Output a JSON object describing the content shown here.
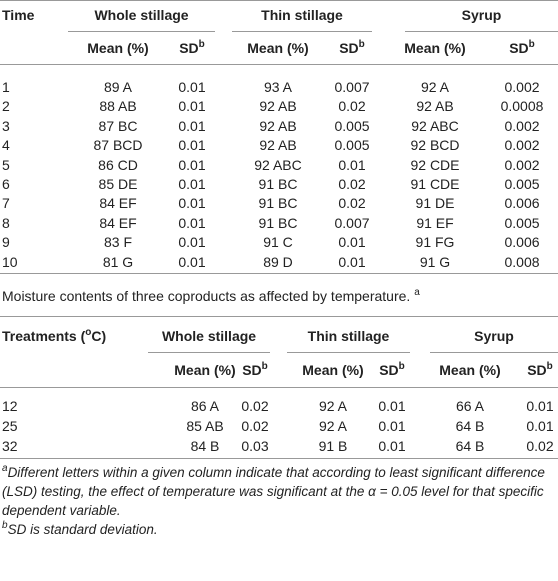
{
  "table1": {
    "first_header": "Time",
    "groups": [
      {
        "name": "Whole stillage",
        "mean_header": "Mean (%)",
        "sd_header": "SD",
        "sd_sup": "b"
      },
      {
        "name": "Thin stillage",
        "mean_header": "Mean (%)",
        "sd_header": "SD",
        "sd_sup": "b"
      },
      {
        "name": "Syrup",
        "mean_header": "Mean (%)",
        "sd_header": "SD",
        "sd_sup": "b"
      }
    ],
    "rows": [
      [
        "1",
        "89 A",
        "0.01",
        "93 A",
        "0.007",
        "92 A",
        "0.002"
      ],
      [
        "2",
        "88 AB",
        "0.01",
        "92 AB",
        "0.02",
        "92 AB",
        "0.0008"
      ],
      [
        "3",
        "87 BC",
        "0.01",
        "92 AB",
        "0.005",
        "92 ABC",
        "0.002"
      ],
      [
        "4",
        "87 BCD",
        "0.01",
        "92 AB",
        "0.005",
        "92 BCD",
        "0.002"
      ],
      [
        "5",
        "86 CD",
        "0.01",
        "92 ABC",
        "0.01",
        "92 CDE",
        "0.002"
      ],
      [
        "6",
        "85 DE",
        "0.01",
        "91 BC",
        "0.02",
        "91 CDE",
        "0.005"
      ],
      [
        "7",
        "84 EF",
        "0.01",
        "91 BC",
        "0.02",
        "91 DE",
        "0.006"
      ],
      [
        "8",
        "84 EF",
        "0.01",
        "91 BC",
        "0.007",
        "91 EF",
        "0.005"
      ],
      [
        "9",
        "83 F",
        "0.01",
        "91 C",
        "0.01",
        "91 FG",
        "0.006"
      ],
      [
        "10",
        "81 G",
        "0.01",
        "89 D",
        "0.01",
        "91 G",
        "0.008"
      ]
    ]
  },
  "caption": {
    "text": "Moisture contents of three coproducts as affected by temperature.",
    "sup": "a"
  },
  "table2": {
    "first_header": "Treatments (",
    "first_header_sup": "o",
    "first_header_tail": "C)",
    "groups": [
      {
        "name": "Whole stillage",
        "mean_header": "Mean (%)",
        "sd_header": "SD",
        "sd_sup": "b"
      },
      {
        "name": "Thin stillage",
        "mean_header": "Mean (%)",
        "sd_header": "SD",
        "sd_sup": "b"
      },
      {
        "name": "Syrup",
        "mean_header": "Mean (%)",
        "sd_header": "SD",
        "sd_sup": "b"
      }
    ],
    "rows": [
      [
        "12",
        "86 A",
        "0.02",
        "92 A",
        "0.01",
        "66 A",
        "0.01"
      ],
      [
        "25",
        "85 AB",
        "0.02",
        "92 A",
        "0.01",
        "64 B",
        "0.01"
      ],
      [
        "32",
        "84 B",
        "0.03",
        "91 B",
        "0.01",
        "64 B",
        "0.02"
      ]
    ]
  },
  "footnotes": [
    {
      "mark": "a",
      "text": "Different letters within a given column indicate that according to least significant difference (LSD) testing, the effect of temperature was significant at the α = 0.05 level for that specific dependent variable."
    },
    {
      "mark": "b",
      "text": "SD is standard deviation."
    }
  ]
}
